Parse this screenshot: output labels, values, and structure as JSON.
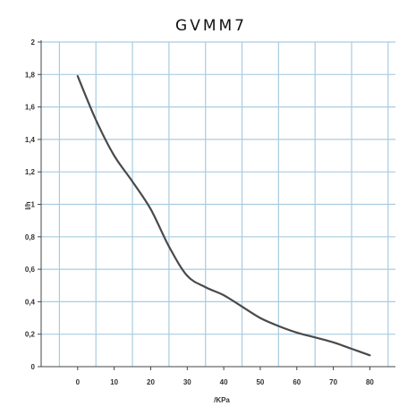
{
  "chart_data": {
    "type": "line",
    "title": "GVMM7",
    "xlabel": "/KPa",
    "ylabel": "l/h",
    "xlim": [
      -10,
      87
    ],
    "ylim": [
      0,
      2
    ],
    "x_ticks": [
      0,
      10,
      20,
      30,
      40,
      50,
      60,
      70,
      80
    ],
    "y_ticks": [
      0,
      0.2,
      0.4,
      0.6,
      0.8,
      1,
      1.2,
      1.4,
      1.6,
      1.8,
      2
    ],
    "y_tick_labels": [
      "0",
      "0,2",
      "0,4",
      "0,6",
      "0,8",
      "1",
      "1,2",
      "1,4",
      "1,6",
      "1,8",
      "2"
    ],
    "grid": true,
    "series": [
      {
        "x": [
          0,
          5,
          10,
          15,
          20,
          25,
          30,
          35,
          40,
          45,
          50,
          55,
          60,
          65,
          70,
          75,
          80
        ],
        "y": [
          1.79,
          1.52,
          1.3,
          1.14,
          0.97,
          0.74,
          0.56,
          0.49,
          0.44,
          0.37,
          0.3,
          0.25,
          0.21,
          0.18,
          0.15,
          0.11,
          0.07
        ]
      }
    ],
    "colors": {
      "grid": "#a9cce0",
      "line": "#4a4a4a",
      "axis": "#444444"
    }
  }
}
